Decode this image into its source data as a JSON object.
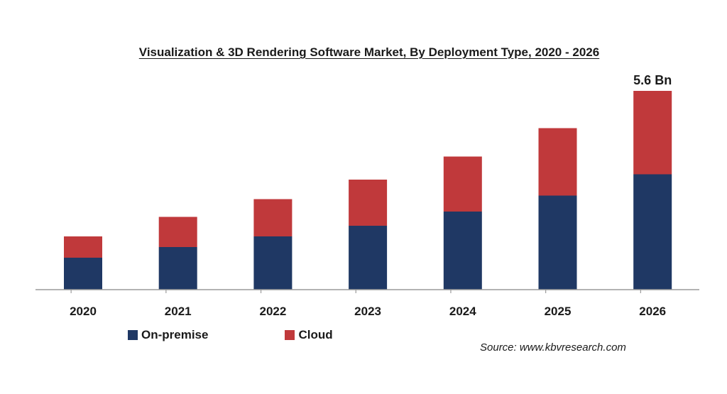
{
  "chart_data": {
    "type": "bar",
    "stacked": true,
    "title": "Visualization & 3D Rendering Software Market, By Deployment Type, 2020 - 2026",
    "categories": [
      "2020",
      "2021",
      "2022",
      "2023",
      "2024",
      "2025",
      "2026"
    ],
    "series": [
      {
        "name": "On-premise",
        "color": "#1f3864",
        "values": [
          0.9,
          1.2,
          1.5,
          1.8,
          2.2,
          2.65,
          3.25
        ]
      },
      {
        "name": "Cloud",
        "color": "#c0393b",
        "values": [
          0.6,
          0.85,
          1.05,
          1.3,
          1.55,
          1.9,
          2.35
        ]
      }
    ],
    "annotations": [
      {
        "category": "2026",
        "text": "5.6 Bn"
      }
    ],
    "xlabel": "",
    "ylabel": "",
    "ylim": [
      0,
      5.6
    ],
    "y_axis_visible": false,
    "grid": false,
    "legend_position": "bottom-left"
  },
  "legend": {
    "on_premise": "On-premise",
    "cloud": "Cloud"
  },
  "source": "Source: www.kbvresearch.com"
}
